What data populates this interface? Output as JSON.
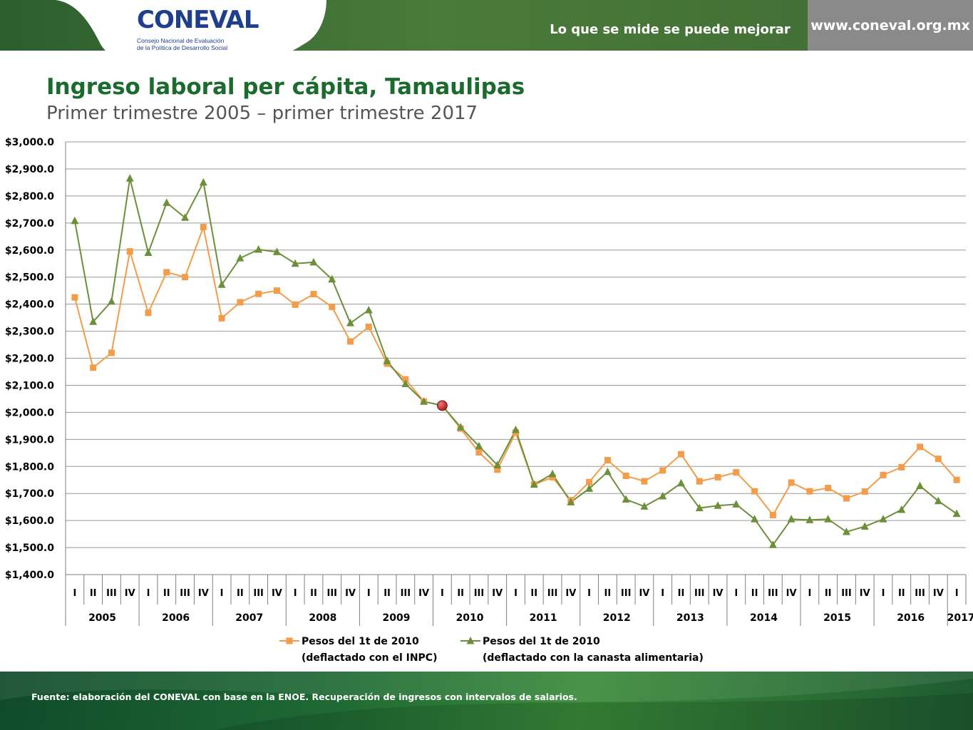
{
  "header": {
    "logo_text": "CONEVAL",
    "logo_subtitle_line1": "Consejo Nacional de Evaluación",
    "logo_subtitle_line2": "de la Política de Desarrollo Social",
    "tagline": "Lo que se mide se puede mejorar",
    "url": "www.coneval.org.mx"
  },
  "page": {
    "title": "Ingreso laboral per cápita, Tamaulipas",
    "subtitle": "Primer trimestre 2005 – primer trimestre 2017"
  },
  "footer": {
    "source": "Fuente: elaboración del CONEVAL con base en la ENOE. Recuperación de ingresos con intervalos de salarios."
  },
  "colors": {
    "inpc": "#f39c4a",
    "canasta": "#6e8f3a",
    "highlight": "#b01e23"
  },
  "chart_data": {
    "type": "line",
    "ylim": [
      1400,
      3000
    ],
    "ytick_step": 100,
    "ytick_labels": [
      "$1,400.0",
      "$1,500.0",
      "$1,600.0",
      "$1,700.0",
      "$1,800.0",
      "$1,900.0",
      "$2,000.0",
      "$2,100.0",
      "$2,200.0",
      "$2,300.0",
      "$2,400.0",
      "$2,500.0",
      "$2,600.0",
      "$2,700.0",
      "$2,800.0",
      "$2,900.0",
      "$3,000.0"
    ],
    "grid": true,
    "legend_position": "bottom",
    "quarters": [
      "I",
      "II",
      "III",
      "IV",
      "I",
      "II",
      "III",
      "IV",
      "I",
      "II",
      "III",
      "IV",
      "I",
      "II",
      "III",
      "IV",
      "I",
      "II",
      "III",
      "IV",
      "I",
      "II",
      "III",
      "IV",
      "I",
      "II",
      "III",
      "IV",
      "I",
      "II",
      "III",
      "IV",
      "I",
      "II",
      "III",
      "IV",
      "I",
      "II",
      "III",
      "IV",
      "I",
      "II",
      "III",
      "IV",
      "I",
      "II",
      "III",
      "IV",
      "I"
    ],
    "years": [
      "2005",
      "2006",
      "2007",
      "2008",
      "2009",
      "2010",
      "2011",
      "2012",
      "2013",
      "2014",
      "2015",
      "2016",
      "2017"
    ],
    "highlight_index": 20,
    "series": [
      {
        "name_line1": "Pesos del 1t de 2010",
        "name_line2": "(deflactado con el INPC)",
        "marker": "square",
        "values": [
          2425,
          2165,
          2220,
          2595,
          2368,
          2518,
          2500,
          2685,
          2348,
          2407,
          2438,
          2450,
          2398,
          2437,
          2390,
          2262,
          2316,
          2180,
          2122,
          2040,
          2025,
          1940,
          1852,
          1788,
          1925,
          1733,
          1760,
          1675,
          1742,
          1823,
          1765,
          1745,
          1785,
          1845,
          1745,
          1760,
          1778,
          1708,
          1620,
          1740,
          1708,
          1720,
          1682,
          1707,
          1768,
          1797,
          1872,
          1828,
          1750
        ]
      },
      {
        "name_line1": "Pesos del 1t de 2010",
        "name_line2": "(deflactado con la canasta alimentaria)",
        "marker": "triangle",
        "values": [
          2708,
          2335,
          2410,
          2865,
          2590,
          2775,
          2720,
          2850,
          2472,
          2570,
          2602,
          2593,
          2550,
          2555,
          2492,
          2330,
          2378,
          2190,
          2105,
          2040,
          2025,
          1945,
          1875,
          1805,
          1935,
          1733,
          1772,
          1668,
          1718,
          1780,
          1678,
          1652,
          1690,
          1738,
          1646,
          1655,
          1660,
          1605,
          1510,
          1605,
          1602,
          1605,
          1558,
          1578,
          1605,
          1640,
          1728,
          1672,
          1625
        ]
      }
    ]
  }
}
